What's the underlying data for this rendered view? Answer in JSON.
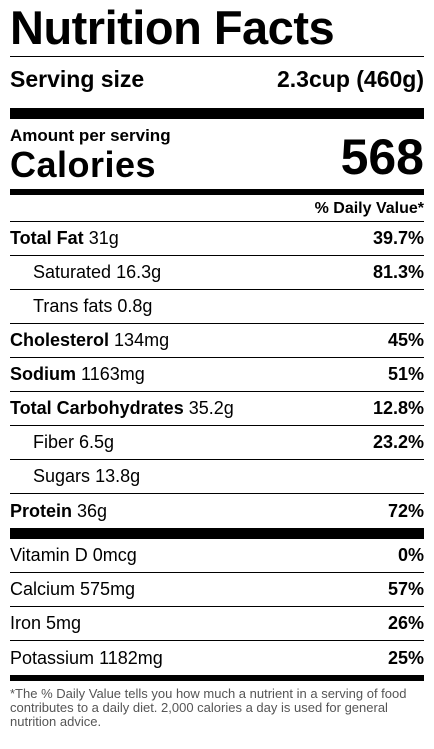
{
  "header": {
    "title": "Nutrition Facts"
  },
  "serving": {
    "label": "Serving size",
    "value": "2.3cup (460g)"
  },
  "calories": {
    "amount_label": "Amount per serving",
    "label": "Calories",
    "value": "568"
  },
  "daily_value_header": "% Daily Value*",
  "nutrients": [
    {
      "name": "Total Fat",
      "amount": "31g",
      "dv": "39.7%"
    },
    {
      "name": "Saturated",
      "amount": "16.3g",
      "dv": "81.3%"
    },
    {
      "name": "Trans fats",
      "amount": "0.8g"
    },
    {
      "name": "Cholesterol",
      "amount": "134mg",
      "dv": "45%"
    },
    {
      "name": "Sodium",
      "amount": "1163mg",
      "dv": "51%"
    },
    {
      "name": "Total Carbohydrates",
      "amount": "35.2g",
      "dv": "12.8%"
    },
    {
      "name": "Fiber",
      "amount": "6.5g",
      "dv": "23.2%"
    },
    {
      "name": "Sugars",
      "amount": "13.8g"
    },
    {
      "name": "Protein",
      "amount": "36g",
      "dv": "72%"
    }
  ],
  "vitamins": [
    {
      "name": "Vitamin D",
      "amount": "0mcg",
      "dv": "0%"
    },
    {
      "name": "Calcium",
      "amount": "575mg",
      "dv": "57%"
    },
    {
      "name": "Iron",
      "amount": "5mg",
      "dv": "26%"
    },
    {
      "name": "Potassium",
      "amount": "1182mg",
      "dv": "25%"
    }
  ],
  "footnote": "*The % Daily Value tells you how much a nutrient in a serving of food contributes to a daily diet. 2,000 calories a day is used for general nutrition advice."
}
